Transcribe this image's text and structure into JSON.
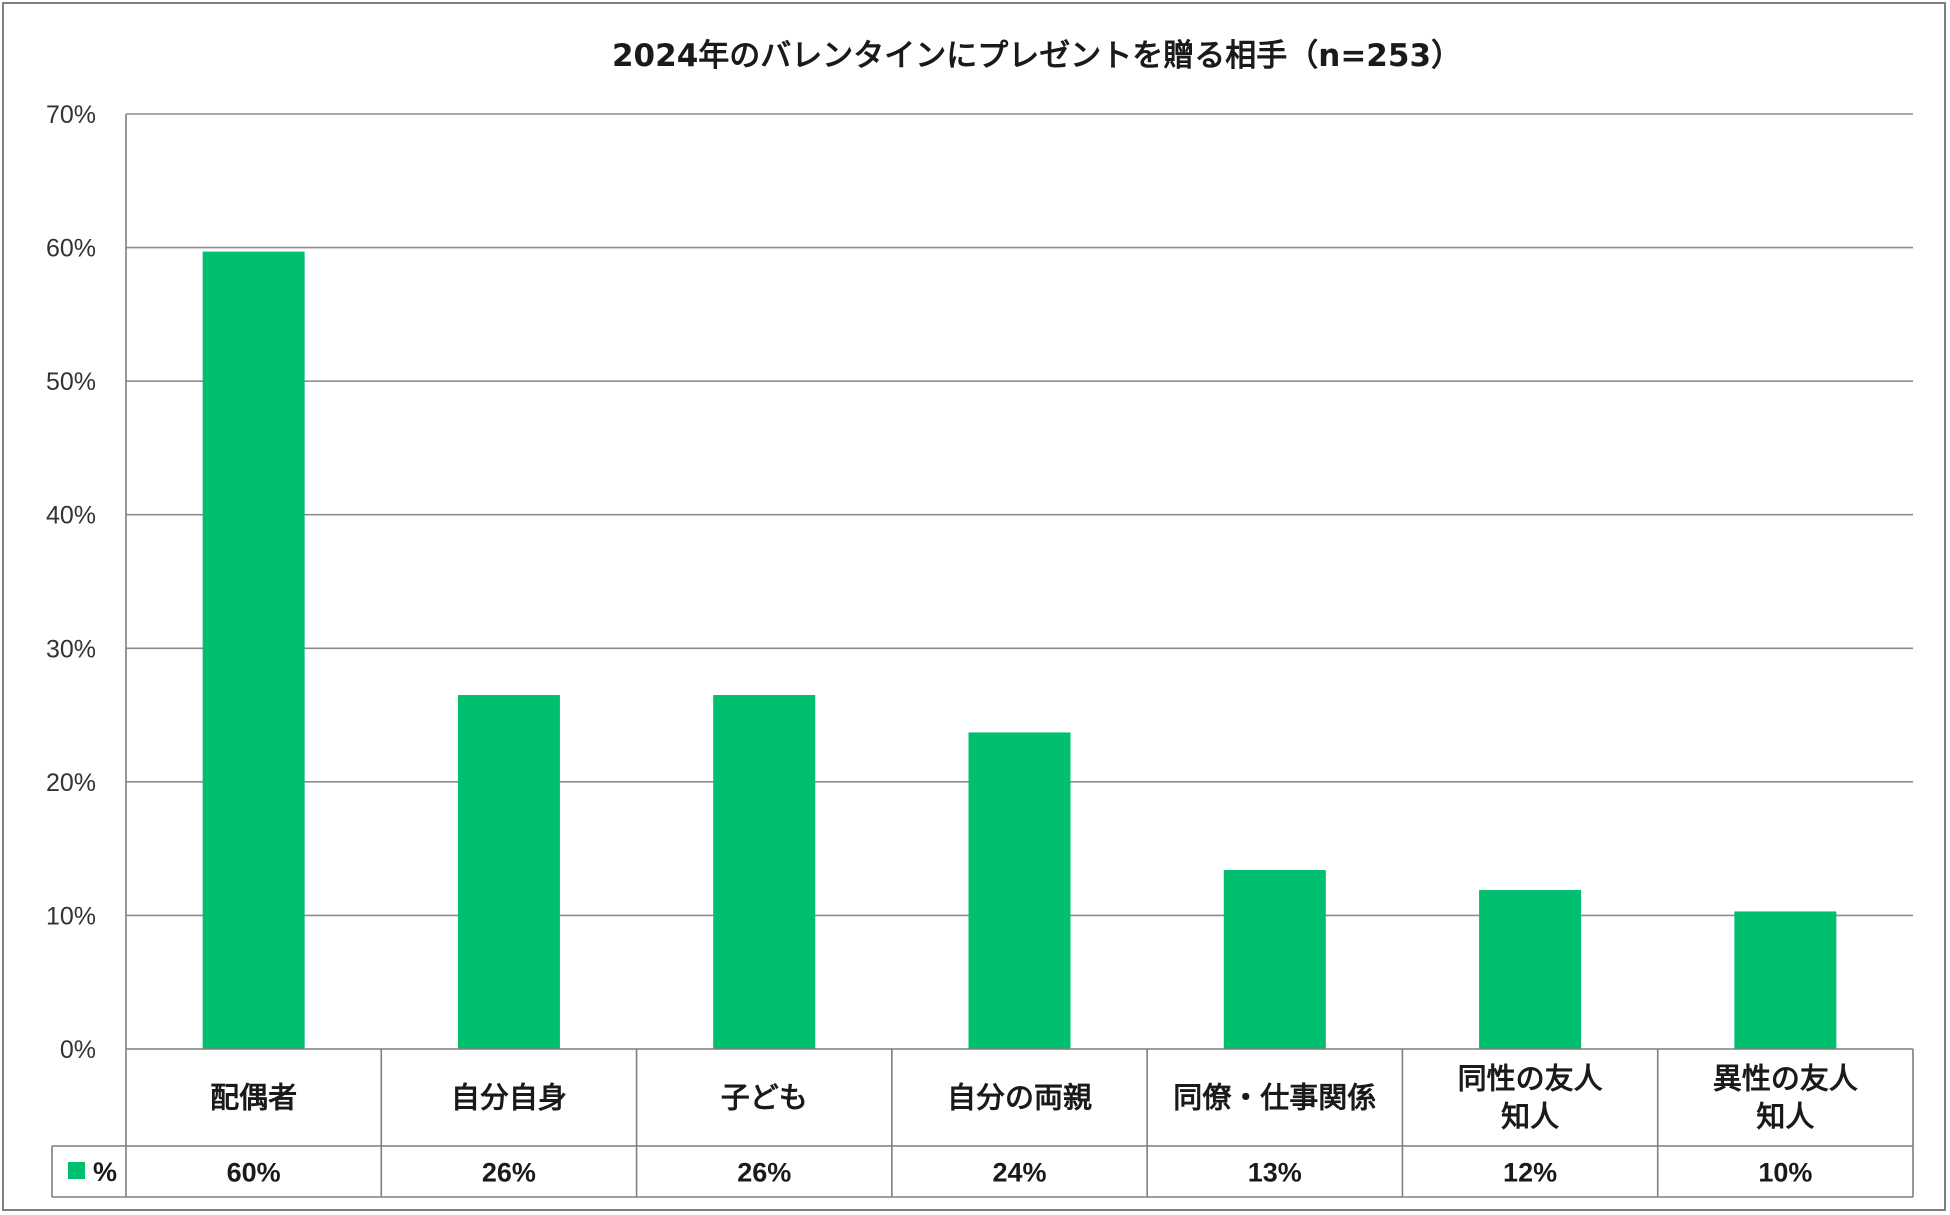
{
  "chart_data": {
    "type": "bar",
    "title": "2024年のバレンタインにプレゼントを贈る相手（n=253）",
    "categories": [
      [
        "配偶者"
      ],
      [
        "自分自身"
      ],
      [
        "子ども"
      ],
      [
        "自分の両親"
      ],
      [
        "同僚・仕事関係"
      ],
      [
        "同性の友人",
        "知人"
      ],
      [
        "異性の友人",
        "知人"
      ]
    ],
    "series": [
      {
        "name": "%",
        "values": [
          59.7,
          26.5,
          26.5,
          23.7,
          13.4,
          11.9,
          10.3
        ],
        "labels": [
          "60%",
          "26%",
          "26%",
          "24%",
          "13%",
          "12%",
          "10%"
        ],
        "color": "#00bf6f"
      }
    ],
    "ylim": [
      0,
      70
    ],
    "yticks": [
      0,
      10,
      20,
      30,
      40,
      50,
      60,
      70
    ],
    "ytick_labels": [
      "0%",
      "10%",
      "20%",
      "30%",
      "40%",
      "50%",
      "60%",
      "70%"
    ],
    "grid": true,
    "legend": "data-table-left",
    "gridline_color": "#8c8c8c",
    "axis_color": "#7f7f7f"
  }
}
